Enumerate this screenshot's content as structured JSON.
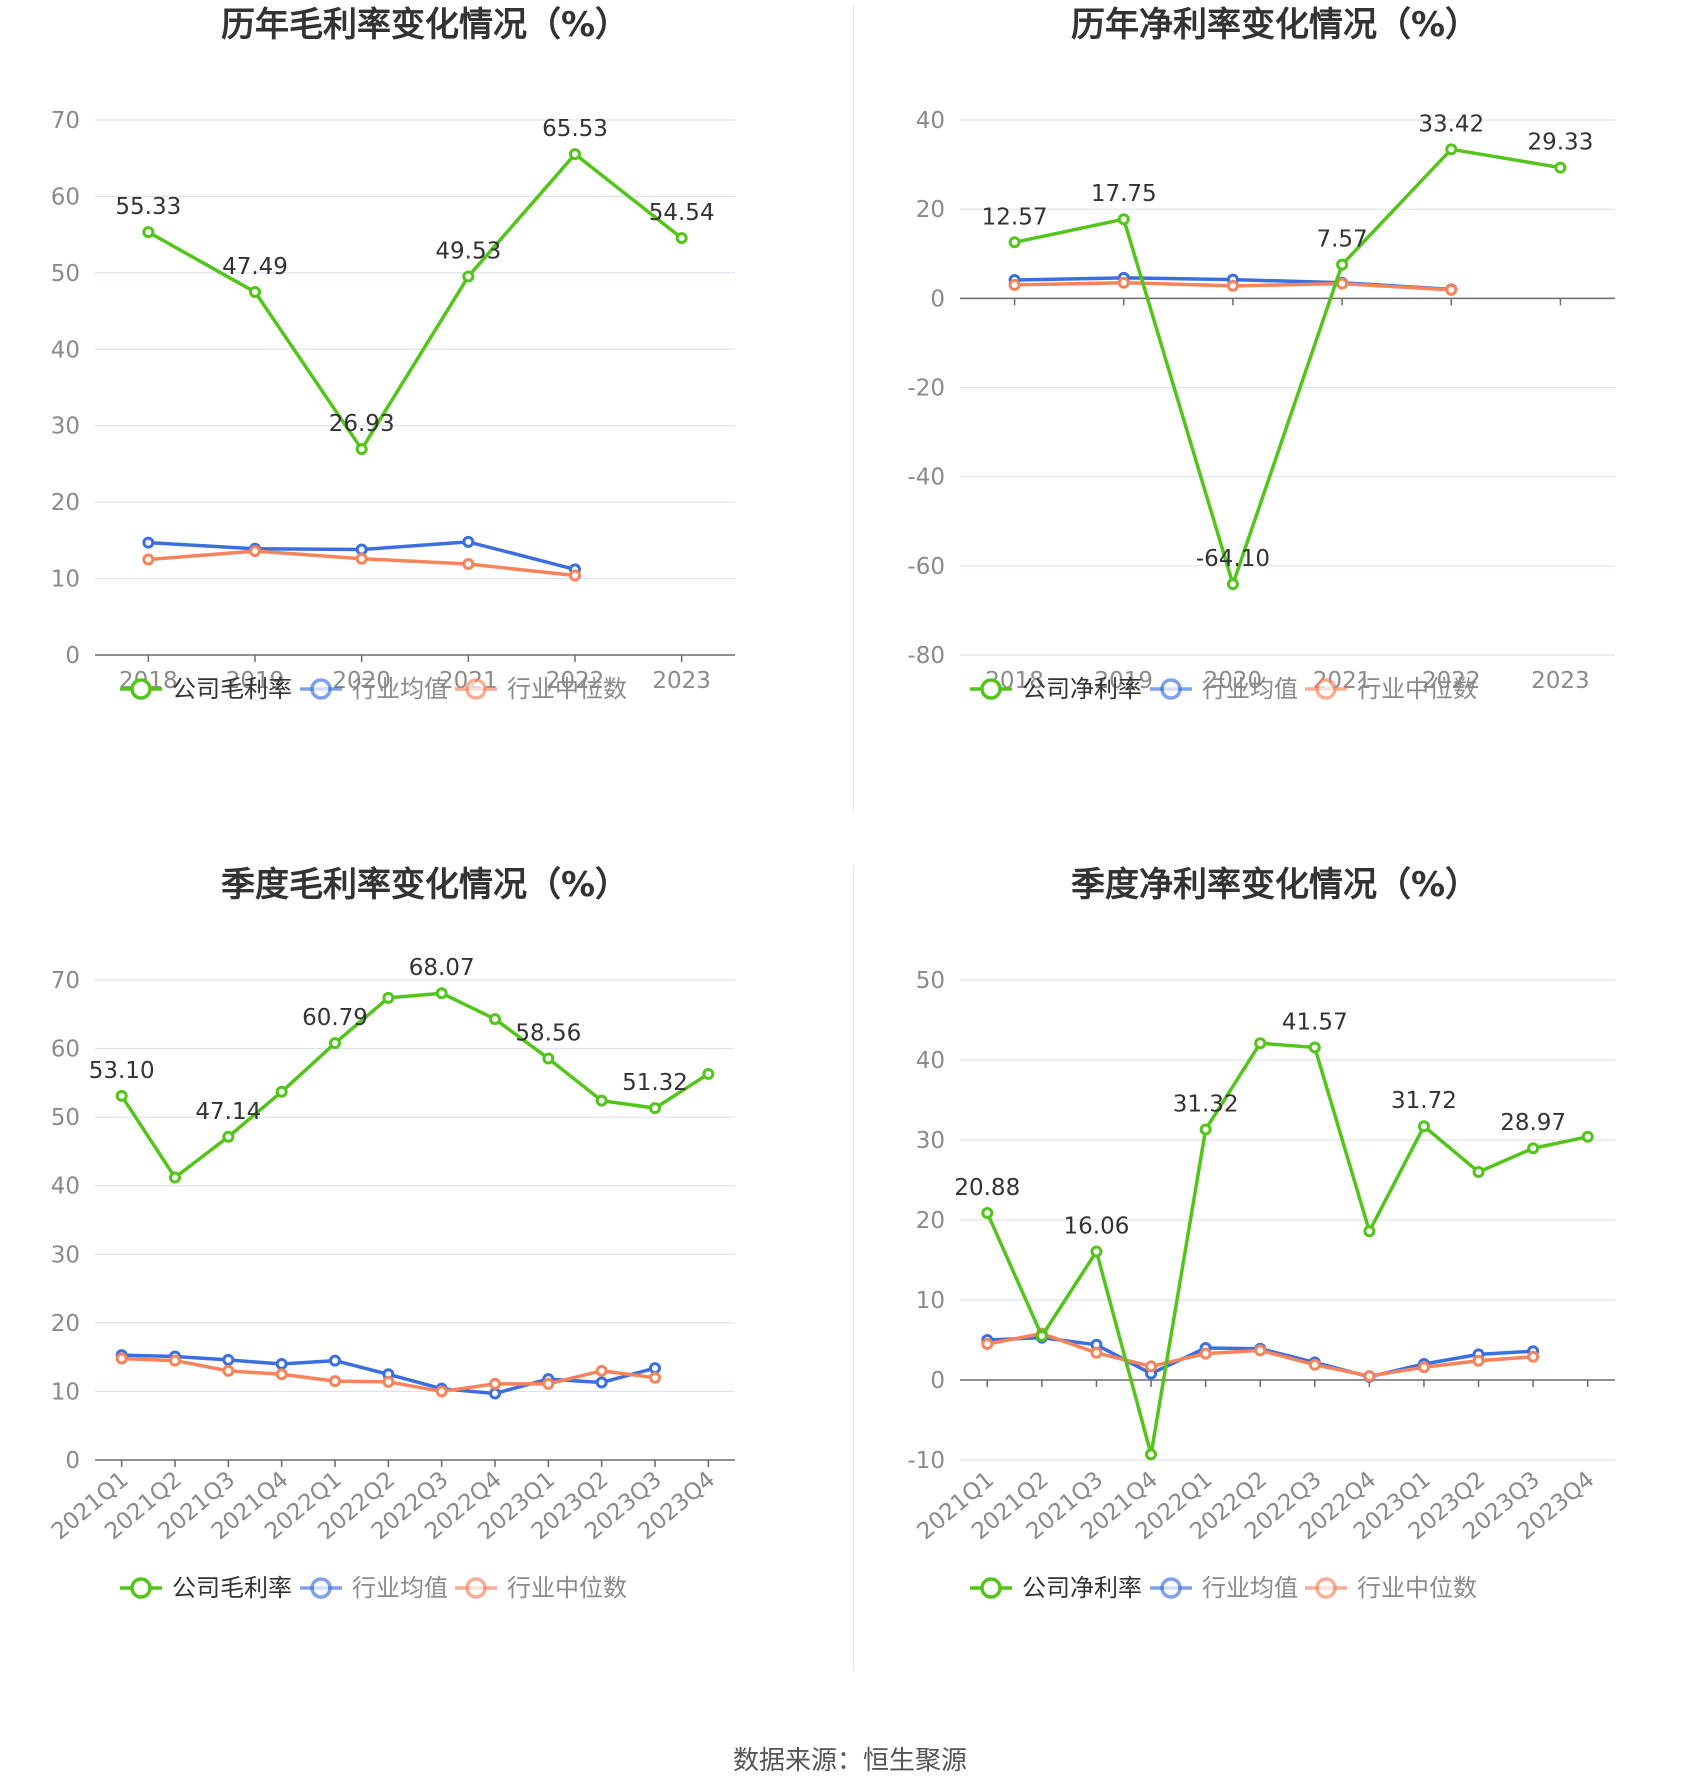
{
  "colors": {
    "company": "#52c41a",
    "industry_avg": "#3b6fe0",
    "industry_median": "#f5845a",
    "grid": "#dde3ee",
    "axis": "#6b6b6b",
    "text": "#333333",
    "label": "#8a8a8a"
  },
  "footer": {
    "source": "数据来源：恒生聚源"
  },
  "chart_data": [
    {
      "type": "line",
      "title": "历年毛利率变化情况（%）",
      "categories": [
        "2018",
        "2019",
        "2020",
        "2021",
        "2022",
        "2023"
      ],
      "ylim": [
        0,
        70
      ],
      "yticks": [
        0,
        10,
        20,
        30,
        40,
        50,
        60,
        70
      ],
      "grid": true,
      "rotate_x_labels": false,
      "legend_position": "bottom-center",
      "series": [
        {
          "name": "公司毛利率",
          "role": "company",
          "values": [
            55.33,
            47.49,
            26.93,
            49.53,
            65.53,
            54.54
          ],
          "labels": [
            "55.33",
            "47.49",
            "26.93",
            "49.53",
            "65.53",
            "54.54"
          ]
        },
        {
          "name": "行业均值",
          "role": "industry_avg",
          "values": [
            14.7,
            13.9,
            13.8,
            14.8,
            11.2,
            null
          ],
          "labels": []
        },
        {
          "name": "行业中位数",
          "role": "industry_median",
          "values": [
            12.5,
            13.6,
            12.6,
            11.9,
            10.4,
            null
          ],
          "labels": []
        }
      ]
    },
    {
      "type": "line",
      "title": "历年净利率变化情况（%）",
      "categories": [
        "2018",
        "2019",
        "2020",
        "2021",
        "2022",
        "2023"
      ],
      "ylim": [
        -80,
        40
      ],
      "yticks": [
        -80,
        -60,
        -40,
        -20,
        0,
        20,
        40
      ],
      "grid": true,
      "rotate_x_labels": false,
      "legend_position": "bottom-center",
      "series": [
        {
          "name": "公司净利率",
          "role": "company",
          "values": [
            12.57,
            17.75,
            -64.1,
            7.57,
            33.42,
            29.33
          ],
          "labels": [
            "12.57",
            "17.75",
            "-64.10",
            "7.57",
            "33.42",
            "29.33"
          ]
        },
        {
          "name": "行业均值",
          "role": "industry_avg",
          "values": [
            4.1,
            4.6,
            4.2,
            3.5,
            2.0,
            null
          ],
          "labels": []
        },
        {
          "name": "行业中位数",
          "role": "industry_median",
          "values": [
            3.0,
            3.5,
            2.8,
            3.3,
            1.9,
            null
          ],
          "labels": []
        }
      ]
    },
    {
      "type": "line",
      "title": "季度毛利率变化情况（%）",
      "categories": [
        "2021Q1",
        "2021Q2",
        "2021Q3",
        "2021Q4",
        "2022Q1",
        "2022Q2",
        "2022Q3",
        "2022Q4",
        "2023Q1",
        "2023Q2",
        "2023Q3",
        "2023Q4"
      ],
      "ylim": [
        0,
        70
      ],
      "yticks": [
        0,
        10,
        20,
        30,
        40,
        50,
        60,
        70
      ],
      "grid": true,
      "rotate_x_labels": true,
      "legend_position": "bottom-center",
      "series": [
        {
          "name": "公司毛利率",
          "role": "company",
          "values": [
            53.1,
            41.2,
            47.14,
            53.7,
            60.79,
            67.4,
            68.07,
            64.3,
            58.56,
            52.4,
            51.32,
            56.3
          ],
          "labels": [
            "53.10",
            "",
            "47.14",
            "",
            "60.79",
            "",
            "68.07",
            "",
            "58.56",
            "",
            "51.32",
            ""
          ]
        },
        {
          "name": "行业均值",
          "role": "industry_avg",
          "values": [
            15.3,
            15.1,
            14.6,
            14.0,
            14.5,
            12.5,
            10.4,
            9.7,
            11.8,
            11.3,
            13.4,
            null
          ],
          "labels": []
        },
        {
          "name": "行业中位数",
          "role": "industry_median",
          "values": [
            14.8,
            14.5,
            13.0,
            12.5,
            11.5,
            11.4,
            10.0,
            11.1,
            11.1,
            13.0,
            12.0,
            null
          ],
          "labels": []
        }
      ]
    },
    {
      "type": "line",
      "title": "季度净利率变化情况（%）",
      "categories": [
        "2021Q1",
        "2021Q2",
        "2021Q3",
        "2021Q4",
        "2022Q1",
        "2022Q2",
        "2022Q3",
        "2022Q4",
        "2023Q1",
        "2023Q2",
        "2023Q3",
        "2023Q4"
      ],
      "ylim": [
        -10,
        50
      ],
      "yticks": [
        -10,
        0,
        10,
        20,
        30,
        40,
        50
      ],
      "grid": true,
      "rotate_x_labels": true,
      "legend_position": "bottom-center",
      "series": [
        {
          "name": "公司净利率",
          "role": "company",
          "values": [
            20.88,
            5.5,
            16.06,
            -9.3,
            31.32,
            42.1,
            41.57,
            18.6,
            31.72,
            26.0,
            28.97,
            30.4
          ],
          "labels": [
            "20.88",
            "",
            "16.06",
            "",
            "31.32",
            "",
            "41.57",
            "",
            "31.72",
            "",
            "28.97",
            ""
          ]
        },
        {
          "name": "行业均值",
          "role": "industry_avg",
          "values": [
            5.0,
            5.3,
            4.4,
            0.8,
            4.0,
            3.9,
            2.2,
            0.4,
            2.0,
            3.2,
            3.6,
            null
          ],
          "labels": []
        },
        {
          "name": "行业中位数",
          "role": "industry_median",
          "values": [
            4.5,
            5.8,
            3.4,
            1.7,
            3.3,
            3.7,
            1.9,
            0.5,
            1.6,
            2.4,
            2.9,
            null
          ],
          "labels": []
        }
      ]
    }
  ]
}
